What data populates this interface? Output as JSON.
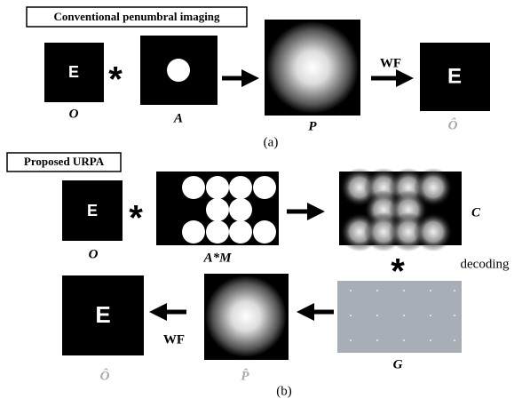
{
  "panel_a": {
    "header": "Conventional penumbral imaging",
    "object_letter": "E",
    "operator": "*",
    "object_label": "O",
    "aperture_label": "A",
    "penumbral_label": "P",
    "filter_label": "WF",
    "result_letter": "E",
    "result_label": "Ô",
    "caption": "(a)"
  },
  "panel_b": {
    "header": "Proposed URPA",
    "object_letter": "E",
    "operator": "*",
    "object_label": "O",
    "aperture_label": "A*M",
    "coded_label": "C",
    "decoding_operator": "*",
    "decoding_text": "decoding",
    "decoder_label": "G",
    "penumbral_label": "P̂",
    "filter_label": "WF",
    "result_letter": "E",
    "result_label": "Ô",
    "caption": "(b)"
  }
}
